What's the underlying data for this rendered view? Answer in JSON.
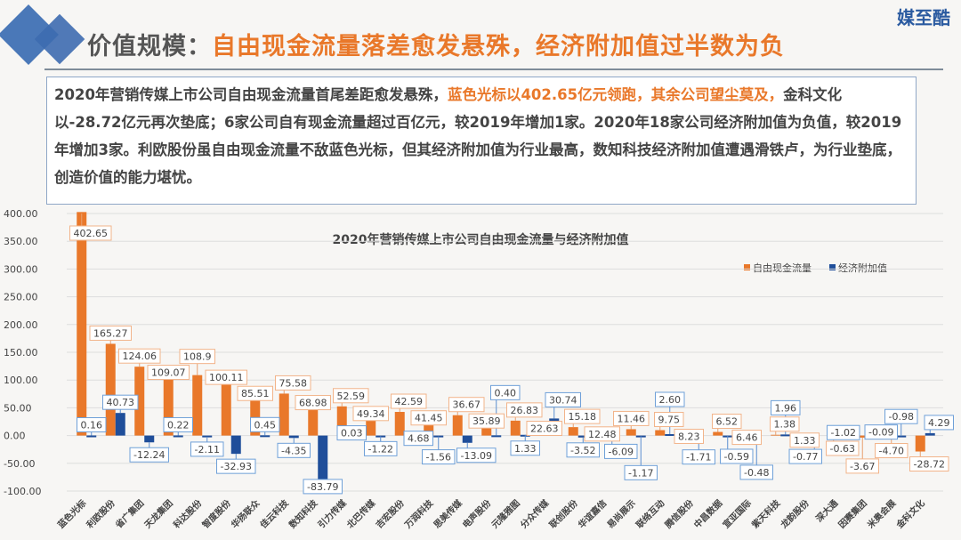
{
  "logo": "媒至酷",
  "title": {
    "prefix": "价值规模：",
    "highlight": "自由现金流量落差愈发悬殊，经济附加值过半数为负"
  },
  "summary": {
    "part1": "2020年营销传媒上市公司自由现金流量首尾差距愈发悬殊，",
    "part2": "蓝色光标以402.65亿元领跑，其余公司望尘莫及，",
    "part3": "金科文化以-28.72亿元再次垫底；6家公司自有现金流量超过百亿元，较2019年增加1家。2020年18家公司经济附加值为负值，较2019年增加3家。利欧股份虽自由现金流量不敌蓝色光标，但其经济附加值为行业最高，数知科技经济附加值遭遇滑铁卢，为行业垫底，创造价值的能力堪忧。"
  },
  "colors": {
    "fcf": "#e9782a",
    "eva": "#1f4e9a"
  },
  "chart_data": {
    "type": "bar",
    "title": "2020年营销传媒上市公司自由现金流量与经济附加值",
    "legend_position": "top-right",
    "ylim": [
      -100,
      400
    ],
    "yticks": [
      "400.00",
      "350.00",
      "300.00",
      "250.00",
      "200.00",
      "150.00",
      "100.00",
      "50.00",
      "0.00",
      "-50.00",
      "-100.00"
    ],
    "categories": [
      "蓝色光标",
      "利欧股份",
      "省广集团",
      "天龙集团",
      "科达股份",
      "智度股份",
      "华扬联众",
      "佳云科技",
      "数知科技",
      "引力传媒",
      "北巴传媒",
      "吉宏股份",
      "万润科技",
      "思美传媒",
      "电声股份",
      "元隆雅图",
      "分众传媒",
      "联创股份",
      "华谊嘉信",
      "易尚展示",
      "联络互动",
      "腾信股份",
      "中昌数据",
      "宣亚国际",
      "紫天科技",
      "龙韵股份",
      "深大通",
      "因赛集团",
      "米奥会展",
      "金科文化"
    ],
    "series": [
      {
        "name": "自由现金流量",
        "values": [
          402.65,
          165.27,
          124.06,
          109.07,
          108.9,
          100.11,
          85.51,
          75.58,
          68.98,
          52.59,
          49.34,
          42.59,
          41.45,
          36.67,
          35.89,
          26.83,
          22.63,
          15.18,
          12.48,
          11.46,
          9.75,
          8.23,
          6.52,
          6.46,
          1.38,
          1.33,
          -0.63,
          -3.67,
          -4.7,
          -28.72
        ]
      },
      {
        "name": "经济附加值",
        "values": [
          0.16,
          40.73,
          -12.24,
          0.22,
          -2.11,
          -32.93,
          0.45,
          -4.35,
          -83.79,
          0.03,
          -1.22,
          4.68,
          -1.56,
          -13.09,
          0.4,
          1.33,
          30.74,
          -3.52,
          -6.09,
          -1.17,
          2.6,
          -1.71,
          -0.59,
          -0.48,
          1.96,
          -0.77,
          -1.02,
          -0.09,
          -0.98,
          4.29
        ]
      }
    ]
  }
}
